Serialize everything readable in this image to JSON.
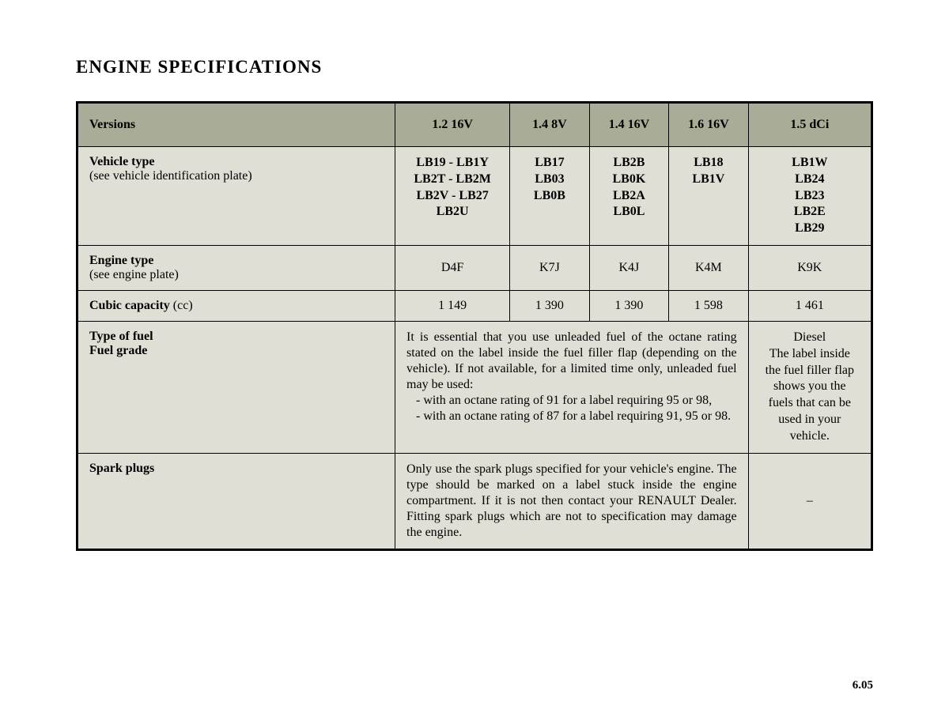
{
  "title": "ENGINE SPECIFICATIONS",
  "page_number": "6.05",
  "colors": {
    "header_bg": "#a9ad97",
    "body_bg": "#e0dfd6",
    "border": "#000000",
    "text": "#000000"
  },
  "columns": {
    "label": "Versions",
    "c1": "1.2 16V",
    "c2": "1.4 8V",
    "c3": "1.4 16V",
    "c4": "1.6 16V",
    "c5": "1.5 dCi"
  },
  "rows": {
    "vehicle_type": {
      "label_main": "Vehicle type",
      "label_sub": "(see vehicle identification plate)",
      "c1": "LB19 - LB1Y\nLB2T - LB2M\nLB2V - LB27\nLB2U",
      "c2": "LB17\nLB03\nLB0B",
      "c3": "LB2B\nLB0K\nLB2A\nLB0L",
      "c4": "LB18\nLB1V",
      "c5": "LB1W\nLB24\nLB23\nLB2E\nLB29"
    },
    "engine_type": {
      "label_main": "Engine type",
      "label_sub": "(see engine plate)",
      "c1": "D4F",
      "c2": "K7J",
      "c3": "K4J",
      "c4": "K4M",
      "c5": "K9K"
    },
    "cubic": {
      "label_main": "Cubic capacity",
      "label_sub": "(cc)",
      "c1": "1 149",
      "c2": "1 390",
      "c3": "1 390",
      "c4": "1 598",
      "c5": "1 461"
    },
    "fuel": {
      "label_main1": "Type of fuel",
      "label_main2": "Fuel grade",
      "petrol_intro": "It is essential that you use unleaded fuel of the octane rating stated on the label inside the fuel filler flap (depending on the vehicle). If not available, for a limited time only, unleaded fuel may be used:",
      "petrol_b1": "- with an octane rating of 91 for a label requiring 95 or 98,",
      "petrol_b2": "- with an octane rating of 87 for a label requiring 91, 95 or 98.",
      "diesel": "Diesel\nThe label inside\nthe fuel filler flap shows you the fuels that can be used in your vehicle."
    },
    "spark": {
      "label_main": "Spark plugs",
      "text": "Only use the spark plugs specified for your vehicle's engine. The type should be marked on a label stuck inside the engine compartment. If it is not then contact your RENAULT Dealer. Fitting spark plugs which are not to specification may damage the engine.",
      "dash": "–"
    }
  }
}
